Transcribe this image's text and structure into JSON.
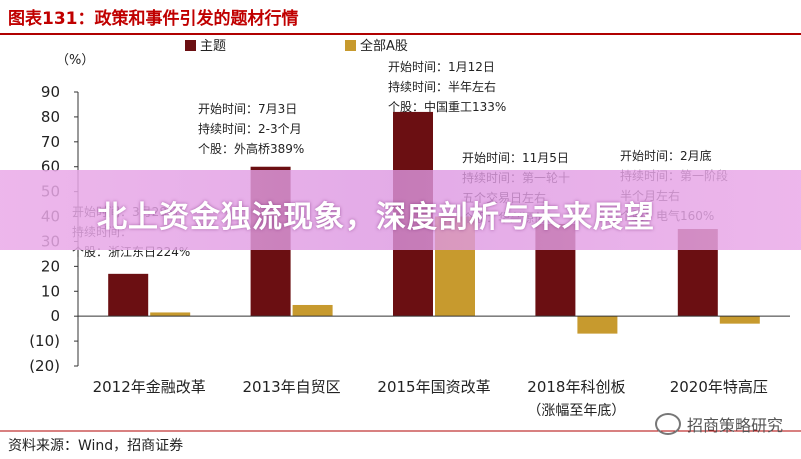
{
  "figure_title": "图表131：政策和事件引发的题材行情",
  "source": "资料来源：Wind，招商证券",
  "banner": "北上资金独流现象，深度剖析与未来展望",
  "watermark": "招商策略研究",
  "colors": {
    "theme": "#6b0f12",
    "market": "#c79a2e",
    "title": "#c00000",
    "rule": "#b00000"
  },
  "chart_data": {
    "type": "bar",
    "ylabel": "（%）",
    "ylim": [
      -20,
      90
    ],
    "yticks": [
      "90",
      "80",
      "70",
      "60",
      "50",
      "40",
      "30",
      "20",
      "10",
      "0",
      "(10)",
      "(20)"
    ],
    "ytick_values": [
      90,
      80,
      70,
      60,
      50,
      40,
      30,
      20,
      10,
      0,
      -10,
      -20
    ],
    "categories": [
      "2012年金融改革",
      "2013年自贸区",
      "2015年国资改革",
      "2018年科创板",
      "2020年特高压"
    ],
    "category_note": "（涨幅至年底）",
    "series": [
      {
        "name": "主题",
        "color": "#6b0f12",
        "values": [
          17,
          60,
          82,
          37,
          35
        ]
      },
      {
        "name": "全部A股",
        "color": "#c79a2e",
        "values": [
          1.5,
          4.5,
          40,
          -7,
          -3
        ]
      }
    ],
    "annotations": [
      [
        "开始时间：3月28日",
        "持续时间：",
        "个股：浙江东日224%"
      ],
      [
        "开始时间：7月3日",
        "持续时间：2-3个月",
        "个股：外高桥389%"
      ],
      [
        "开始时间：1月12日",
        "持续时间：半年左右",
        "个股：中国重工133%"
      ],
      [
        "开始时间：11月5日",
        "持续时间：第一轮十",
        "五个交易日左右",
        "个股：华兴源创"
      ],
      [
        "开始时间：2月底",
        "持续时间：第一阶段",
        "半个月左右",
        "个股：电气160%"
      ]
    ]
  }
}
